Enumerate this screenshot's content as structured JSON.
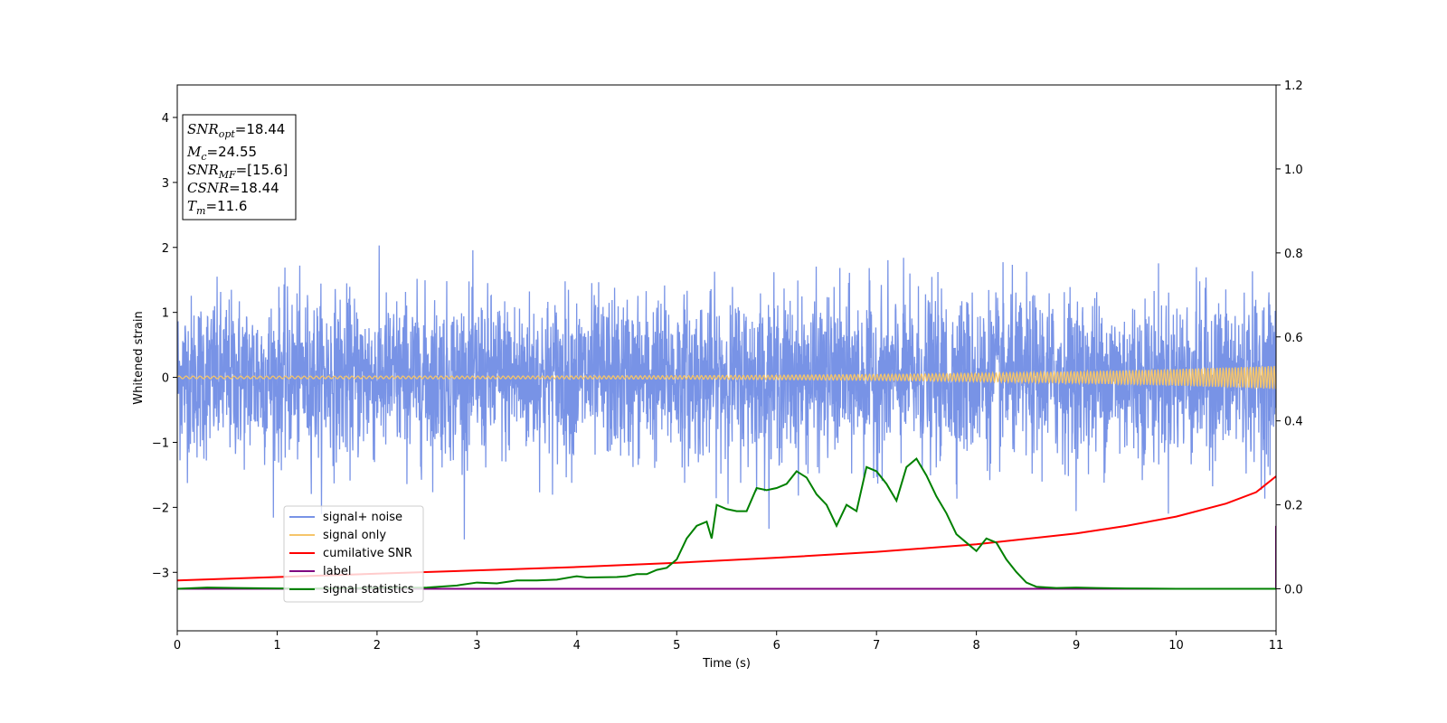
{
  "chart_data": {
    "type": "line",
    "xlabel": "Time (s)",
    "ylabel": "Whitened strain",
    "xlim": [
      0,
      11
    ],
    "ylim": [
      -3.9,
      4.5
    ],
    "y2lim": [
      -0.1,
      1.2
    ],
    "x_ticks": [
      0,
      1,
      2,
      3,
      4,
      5,
      6,
      7,
      8,
      9,
      10,
      11
    ],
    "y_ticks": [
      -3,
      -2,
      -1,
      0,
      1,
      2,
      3,
      4
    ],
    "y2_ticks": [
      0.0,
      0.2,
      0.4,
      0.6,
      0.8,
      1.0,
      1.2
    ],
    "legend_position": "lower-left",
    "grid": false,
    "annotation": {
      "snr_opt": {
        "symbol": "SNR",
        "sub": "opt",
        "value": "=18.44"
      },
      "mc": {
        "symbol": "M",
        "sub": "c",
        "value": "=24.55"
      },
      "snr_mf": {
        "symbol": "SNR",
        "sub": "MF",
        "value": "=[15.6]"
      },
      "csnr": {
        "symbol": "CSNR",
        "value": "=18.44"
      },
      "tm": {
        "symbol": "T",
        "sub": "m",
        "value": "=11.6"
      }
    },
    "series": [
      {
        "name": "signal+ noise",
        "color": "#7893e6",
        "axis": "left",
        "kind": "noise",
        "amplitude_typical": 1.0,
        "amplitude_max": 2.6,
        "x_range": [
          0,
          11
        ]
      },
      {
        "name": "signal only",
        "color": "#f5c56a",
        "axis": "left",
        "kind": "chirp",
        "amplitude_start": 0.02,
        "amplitude_end": 0.18,
        "x_range": [
          0,
          11
        ]
      },
      {
        "name": "cumilative SNR",
        "color": "#ff0000",
        "axis": "right",
        "x": [
          0,
          1,
          2,
          3,
          4,
          5,
          6,
          7,
          8,
          9,
          9.5,
          10,
          10.5,
          10.8,
          11
        ],
        "y": [
          0.02,
          0.028,
          0.036,
          0.044,
          0.052,
          0.062,
          0.074,
          0.088,
          0.106,
          0.132,
          0.15,
          0.172,
          0.203,
          0.23,
          0.268
        ]
      },
      {
        "name": "label",
        "color": "#800080",
        "axis": "right",
        "x": [
          0,
          10.99,
          11,
          11
        ],
        "y": [
          0.0,
          0.0,
          0.0,
          0.15
        ]
      },
      {
        "name": "signal statistics",
        "color": "#008000",
        "axis": "right",
        "x": [
          0,
          0.3,
          0.6,
          1,
          1.5,
          2,
          2.5,
          2.8,
          3,
          3.2,
          3.4,
          3.6,
          3.8,
          4,
          4.1,
          4.4,
          4.5,
          4.6,
          4.7,
          4.8,
          4.9,
          5,
          5.1,
          5.2,
          5.3,
          5.35,
          5.4,
          5.5,
          5.6,
          5.7,
          5.8,
          5.9,
          6,
          6.1,
          6.2,
          6.3,
          6.4,
          6.5,
          6.6,
          6.7,
          6.8,
          6.9,
          7,
          7.1,
          7.2,
          7.3,
          7.4,
          7.5,
          7.6,
          7.7,
          7.8,
          7.9,
          8,
          8.1,
          8.2,
          8.3,
          8.4,
          8.5,
          8.6,
          8.8,
          9,
          9.2,
          9.5,
          10,
          11
        ],
        "y": [
          0.0,
          0.003,
          0.002,
          0.001,
          0.001,
          0.002,
          0.003,
          0.008,
          0.015,
          0.013,
          0.02,
          0.02,
          0.022,
          0.03,
          0.027,
          0.028,
          0.03,
          0.035,
          0.035,
          0.045,
          0.05,
          0.07,
          0.12,
          0.15,
          0.16,
          0.12,
          0.2,
          0.19,
          0.185,
          0.185,
          0.24,
          0.235,
          0.24,
          0.25,
          0.28,
          0.265,
          0.225,
          0.2,
          0.15,
          0.2,
          0.185,
          0.29,
          0.28,
          0.25,
          0.21,
          0.29,
          0.31,
          0.27,
          0.22,
          0.18,
          0.13,
          0.11,
          0.09,
          0.12,
          0.11,
          0.07,
          0.04,
          0.015,
          0.005,
          0.002,
          0.003,
          0.002,
          0.001,
          0.0,
          0.0
        ]
      }
    ]
  }
}
